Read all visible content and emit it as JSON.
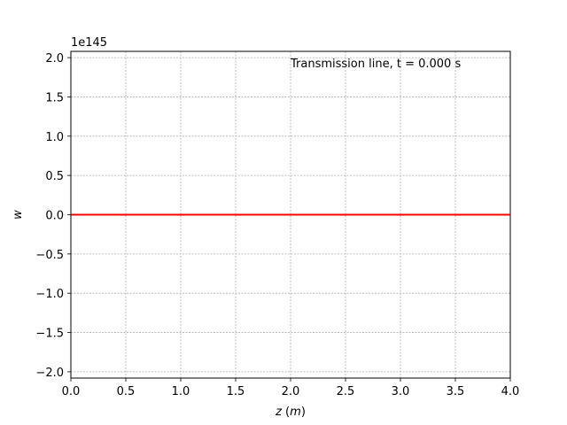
{
  "chart_data": {
    "type": "line",
    "annotation": "Transmission line, t = 0.000 s",
    "xlabel": "z (m)",
    "ylabel": "w",
    "offset_label": "1e145",
    "xlim": [
      0,
      4
    ],
    "ylim": [
      -2.08,
      2.08
    ],
    "xticks": [
      0,
      0.5,
      1,
      1.5,
      2,
      2.5,
      3,
      3.5,
      4
    ],
    "xtick_labels": [
      "0.0",
      "0.5",
      "1.0",
      "1.5",
      "2.0",
      "2.5",
      "3.0",
      "3.5",
      "4.0"
    ],
    "yticks": [
      -2,
      -1.5,
      -1,
      -0.5,
      0,
      0.5,
      1,
      1.5,
      2
    ],
    "ytick_labels": [
      "−2.0",
      "−1.5",
      "−1.0",
      "−0.5",
      "0.0",
      "0.5",
      "1.0",
      "1.5",
      "2.0"
    ],
    "grid": true,
    "series": [
      {
        "color": "#ff0000",
        "x": [
          0,
          4
        ],
        "y": [
          0,
          0
        ]
      }
    ]
  }
}
